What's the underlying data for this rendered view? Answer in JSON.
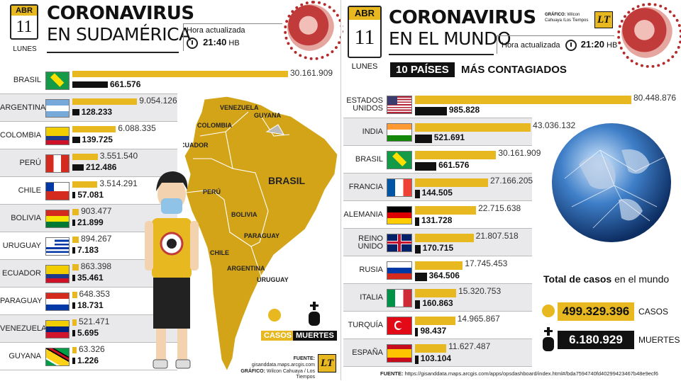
{
  "left": {
    "calendar": {
      "month": "ABR",
      "day": "11",
      "weekday": "LUNES"
    },
    "title_line1": "CORONAVIRUS",
    "title_line2": "EN SUDAMÉRICA",
    "updated_label": "Hora actualizada",
    "updated_time": "21:40",
    "updated_tz": "HB",
    "legend_cases": "CASOS",
    "legend_deaths": "MUERTES",
    "source_label": "FUENTE:",
    "source_text": "gisanddata.maps.arcgis.com",
    "graphic_label": "GRÁFICO:",
    "graphic_text": "Wilcon Cahuaya / Los Tiempos",
    "logo": "LT",
    "map_labels": [
      "VENEZUELA",
      "GUYANA",
      "COLOMBIA",
      "ECUADOR",
      "PERÚ",
      "BRASIL",
      "BOLIVIA",
      "PARAGUAY",
      "CHILE",
      "ARGENTINA",
      "URUGUAY"
    ]
  },
  "right": {
    "calendar": {
      "month": "ABR",
      "day": "11",
      "weekday": "LUNES"
    },
    "title_line1": "CORONAVIRUS",
    "title_line2": "EN EL MUNDO",
    "credit_label": "GRÁFICO:",
    "credit_text": "Wilcon Cahuaya /Los Tiempos",
    "logo": "LT",
    "updated_label": "Hora actualizada",
    "updated_time": "21:20",
    "updated_tz": "HB",
    "subtitle_box": "10 PAÍSES",
    "subtitle_rest": "MÁS CONTAGIADOS",
    "total_label_bold": "Total de casos",
    "total_label_rest": "en el mundo",
    "total_cases": "499.329.396",
    "total_cases_label": "CASOS",
    "total_deaths": "6.180.929",
    "total_deaths_label": "MUERTES",
    "source_label": "FUENTE:",
    "source_text": "https://gisanddata.maps.arcgis.com/apps/opsdashboard/index.html#/bda7594740fd40299423467b48e9ecf6"
  },
  "chart_data": [
    {
      "type": "bar",
      "title": "CORONAVIRUS EN SUDAMÉRICA",
      "categories": [
        "BRASIL",
        "ARGENTINA",
        "COLOMBIA",
        "PERÚ",
        "CHILE",
        "BOLIVIA",
        "URUGUAY",
        "ECUADOR",
        "PARAGUAY",
        "VENEZUELA",
        "GUYANA"
      ],
      "series": [
        {
          "name": "CASOS",
          "color": "#e8b820",
          "values": [
            30161909,
            9054126,
            6088335,
            3551540,
            3514291,
            903477,
            894267,
            863398,
            648353,
            521471,
            63326
          ],
          "labels": [
            "30.161.909",
            "9.054.126",
            "6.088.335",
            "3.551.540",
            "3.514.291",
            "903.477",
            "894.267",
            "863.398",
            "648.353",
            "521.471",
            "63.326"
          ]
        },
        {
          "name": "MUERTES",
          "color": "#111111",
          "values": [
            661576,
            128233,
            139725,
            212486,
            57081,
            21899,
            7183,
            35461,
            18731,
            5695,
            1226
          ],
          "labels": [
            "661.576",
            "128.233",
            "139.725",
            "212.486",
            "57.081",
            "21.899",
            "7.183",
            "35.461",
            "18.731",
            "5.695",
            "1.226"
          ]
        }
      ]
    },
    {
      "type": "bar",
      "title": "CORONAVIRUS EN EL MUNDO",
      "categories": [
        "ESTADOS UNIDOS",
        "INDIA",
        "BRASIL",
        "FRANCIA",
        "ALEMANIA",
        "REINO UNIDO",
        "RUSIA",
        "ITALIA",
        "TURQUÍA",
        "ESPAÑA"
      ],
      "series": [
        {
          "name": "CASOS",
          "color": "#e8b820",
          "values": [
            80448876,
            43036132,
            30161909,
            27166205,
            22715638,
            21807518,
            17745453,
            15320753,
            14965867,
            11627487
          ],
          "labels": [
            "80.448.876",
            "43.036.132",
            "30.161.909",
            "27.166.205",
            "22.715.638",
            "21.807.518",
            "17.745.453",
            "15.320.753",
            "14.965.867",
            "11.627.487"
          ]
        },
        {
          "name": "MUERTES",
          "color": "#111111",
          "values": [
            985828,
            521691,
            661576,
            144505,
            131728,
            170715,
            364506,
            160863,
            98437,
            103104
          ],
          "labels": [
            "985.828",
            "521.691",
            "661.576",
            "144.505",
            "131.728",
            "170.715",
            "364.506",
            "160.863",
            "98.437",
            "103.104"
          ]
        }
      ]
    }
  ]
}
